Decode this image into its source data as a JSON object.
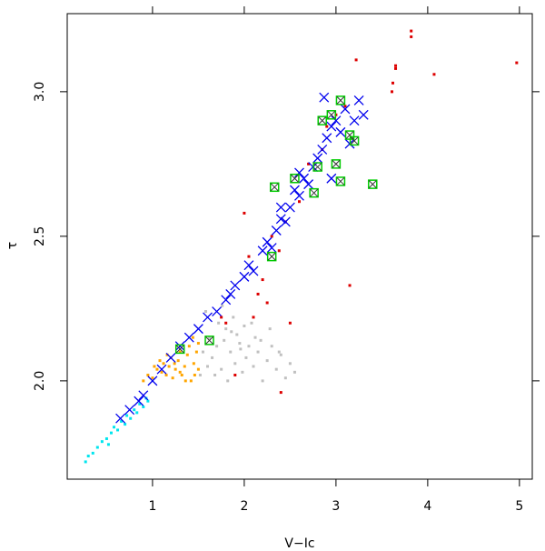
{
  "chart_data": {
    "type": "scatter",
    "x_label": "V−Ic",
    "y_label": "τ",
    "xlim": [
      0.07,
      5.14
    ],
    "ylim": [
      1.66,
      3.27
    ],
    "xticks": [
      1,
      2,
      3,
      4,
      5
    ],
    "yticks": [
      {
        "value": 2,
        "label": "2.0"
      },
      {
        "value": 2.5,
        "label": "2.5"
      },
      {
        "value": 3,
        "label": "3.0"
      }
    ],
    "series": [
      {
        "color": "#c0c0c0",
        "marker": "square",
        "x": [
          1.52,
          1.55,
          1.6,
          1.62,
          1.65,
          1.7,
          1.72,
          1.75,
          1.78,
          1.8,
          1.82,
          1.85,
          1.88,
          1.9,
          1.92,
          1.95,
          1.98,
          2.0,
          2.02,
          2.05,
          2.1,
          2.12,
          2.15,
          2.2,
          2.25,
          2.3,
          2.35,
          2.4,
          2.45,
          2.5,
          1.58,
          1.68,
          1.76,
          1.86,
          1.96,
          2.08,
          2.18,
          2.28,
          2.38,
          2.55
        ],
        "y": [
          2.02,
          2.1,
          2.05,
          2.15,
          2.08,
          2.12,
          2.2,
          2.04,
          2.14,
          2.18,
          2.0,
          2.1,
          2.22,
          2.06,
          2.16,
          2.13,
          2.03,
          2.19,
          2.08,
          2.12,
          2.05,
          2.15,
          2.1,
          2.0,
          2.07,
          2.12,
          2.04,
          2.09,
          2.01,
          2.06,
          2.24,
          2.02,
          2.26,
          2.17,
          2.11,
          2.2,
          2.14,
          2.18,
          2.1,
          2.03
        ]
      },
      {
        "color": "#ffa500",
        "marker": "square",
        "x": [
          0.9,
          0.95,
          1.0,
          1.05,
          1.1,
          1.12,
          1.15,
          1.18,
          1.2,
          1.22,
          1.25,
          1.28,
          1.3,
          1.32,
          1.35,
          1.38,
          1.4,
          1.42,
          1.45,
          1.48,
          1.5,
          1.5,
          1.46,
          1.36,
          1.24,
          1.16,
          1.08,
          1.02,
          1.44,
          1.3
        ],
        "y": [
          2.0,
          2.02,
          2.01,
          2.04,
          2.03,
          2.06,
          2.02,
          2.05,
          2.08,
          2.01,
          2.04,
          2.07,
          2.1,
          2.02,
          2.05,
          2.09,
          2.12,
          2.0,
          2.06,
          2.1,
          2.04,
          2.13,
          2.02,
          2.0,
          2.06,
          2.09,
          2.07,
          2.05,
          2.15,
          2.03
        ]
      },
      {
        "color": "#00e5ee",
        "marker": "square",
        "x": [
          0.27,
          0.3,
          0.35,
          0.4,
          0.45,
          0.5,
          0.55,
          0.58,
          0.62,
          0.66,
          0.7,
          0.72,
          0.76,
          0.8,
          0.83,
          0.86,
          0.9,
          0.93,
          0.95,
          0.52
        ],
        "y": [
          1.72,
          1.74,
          1.75,
          1.77,
          1.79,
          1.8,
          1.82,
          1.84,
          1.83,
          1.86,
          1.85,
          1.88,
          1.87,
          1.9,
          1.89,
          1.92,
          1.91,
          1.94,
          1.93,
          1.78
        ]
      },
      {
        "color": "#dd0000",
        "marker": "square",
        "x": [
          3.82,
          3.82,
          3.65,
          3.65,
          4.07,
          4.97,
          3.22,
          3.62,
          3.61,
          2.05,
          2.1,
          2.4,
          2.25,
          3.15,
          1.9,
          2.5,
          2.38,
          2.0,
          1.8,
          2.2,
          2.6,
          2.9,
          3.1,
          2.7,
          2.3,
          2.85,
          3.0,
          1.75,
          2.15,
          2.45
        ],
        "y": [
          3.21,
          3.19,
          3.08,
          3.09,
          3.06,
          3.1,
          3.11,
          3.03,
          3.0,
          2.43,
          2.22,
          1.96,
          2.27,
          2.33,
          2.02,
          2.2,
          2.45,
          2.58,
          2.2,
          2.35,
          2.62,
          2.88,
          2.95,
          2.75,
          2.5,
          2.8,
          2.92,
          2.22,
          2.3,
          2.55
        ]
      },
      {
        "color": "#0000ee",
        "marker": "cross",
        "x": [
          0.65,
          0.75,
          0.85,
          0.9,
          1.0,
          1.1,
          1.2,
          1.3,
          1.4,
          1.5,
          1.6,
          1.7,
          1.8,
          1.85,
          1.9,
          2.0,
          2.05,
          2.1,
          2.2,
          2.25,
          2.3,
          2.35,
          2.4,
          2.45,
          2.5,
          2.55,
          2.6,
          2.65,
          2.7,
          2.75,
          2.8,
          2.85,
          2.9,
          2.95,
          3.0,
          3.05,
          3.1,
          3.15,
          3.2,
          3.25,
          2.87,
          3.3,
          2.4,
          2.6,
          2.95
        ],
        "y": [
          1.87,
          1.9,
          1.93,
          1.95,
          2.0,
          2.04,
          2.08,
          2.12,
          2.15,
          2.18,
          2.22,
          2.24,
          2.28,
          2.3,
          2.33,
          2.36,
          2.4,
          2.38,
          2.45,
          2.48,
          2.46,
          2.52,
          2.56,
          2.55,
          2.6,
          2.66,
          2.64,
          2.7,
          2.68,
          2.74,
          2.77,
          2.8,
          2.84,
          2.88,
          2.9,
          2.86,
          2.94,
          2.82,
          2.9,
          2.97,
          2.98,
          2.92,
          2.6,
          2.72,
          2.7
        ]
      },
      {
        "color": "#00cc00",
        "marker": "box-cross",
        "x": [
          1.62,
          2.33,
          3.4,
          3.05,
          2.3,
          2.8,
          3.05,
          3.15,
          1.3,
          2.76,
          2.85,
          3.0,
          2.55,
          3.2,
          2.95
        ],
        "y": [
          2.14,
          2.67,
          2.68,
          2.69,
          2.43,
          2.74,
          2.97,
          2.85,
          2.11,
          2.65,
          2.9,
          2.75,
          2.7,
          2.83,
          2.92
        ]
      }
    ]
  }
}
